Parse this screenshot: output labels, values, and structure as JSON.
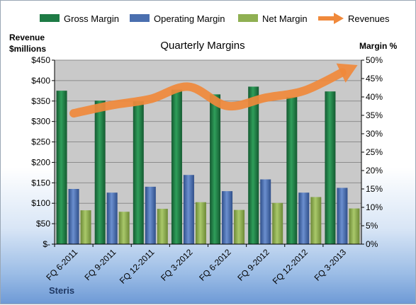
{
  "chart_data": {
    "type": "bar",
    "title": "Quarterly Margins",
    "footer": "Steris",
    "categories": [
      "FQ 6-2011",
      "FQ 9-2011",
      "FQ 12-2011",
      "FQ 3-2012",
      "FQ 6-2012",
      "FQ 9-2012",
      "FQ 12-2012",
      "FQ 3-2013"
    ],
    "series": [
      {
        "name": "Gross Margin",
        "kind": "bar",
        "axis": "right",
        "color": "#1e7b45",
        "values": [
          41.7,
          39.0,
          38.8,
          42.0,
          40.7,
          42.8,
          40.0,
          41.5
        ]
      },
      {
        "name": "Operating Margin",
        "kind": "bar",
        "axis": "right",
        "color": "#4a6faf",
        "values": [
          15.0,
          14.0,
          15.6,
          18.8,
          14.4,
          17.6,
          14.0,
          15.3
        ]
      },
      {
        "name": "Net Margin",
        "kind": "bar",
        "axis": "right",
        "color": "#8fb052",
        "values": [
          9.2,
          8.8,
          9.6,
          11.4,
          9.3,
          11.2,
          12.8,
          9.7
        ]
      },
      {
        "name": "Revenues",
        "kind": "line-arrow",
        "axis": "left",
        "color": "#f0893b",
        "values": [
          320,
          340,
          355,
          385,
          338,
          358,
          375,
          420
        ]
      }
    ],
    "left_axis": {
      "title_line1": "Revenue",
      "title_line2": "$millions",
      "min": 0,
      "max": 450,
      "step": 50,
      "tick_labels": [
        "$-",
        "$50",
        "$100",
        "$150",
        "$200",
        "$250",
        "$300",
        "$350",
        "$400",
        "$450"
      ]
    },
    "right_axis": {
      "title": "Margin %",
      "min": 0,
      "max": 50,
      "step": 5,
      "tick_labels": [
        "0%",
        "5%",
        "10%",
        "15%",
        "20%",
        "25%",
        "30%",
        "35%",
        "40%",
        "45%",
        "50%"
      ]
    },
    "grid": true,
    "legend_position": "top",
    "plot_background": "#c9c9c9"
  }
}
